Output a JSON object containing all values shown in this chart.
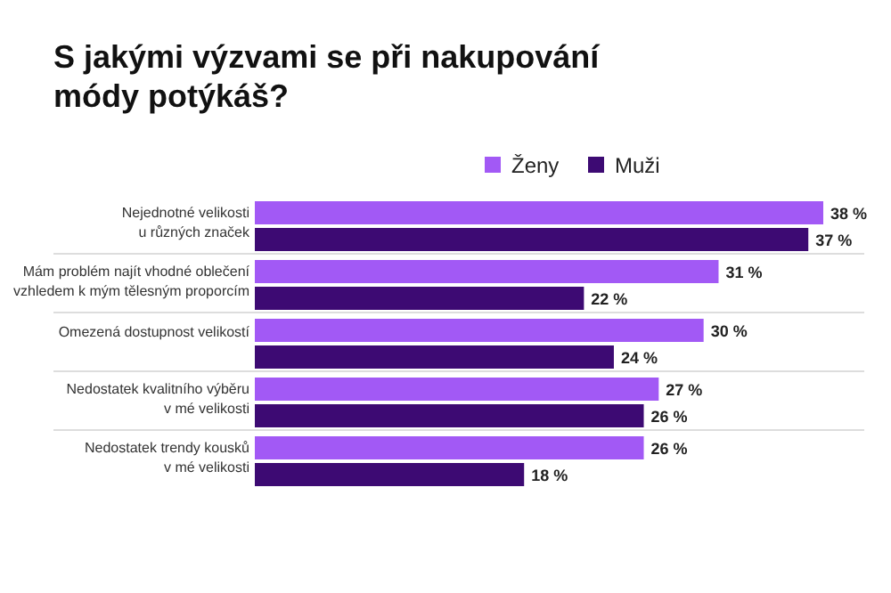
{
  "chart_data": {
    "type": "bar",
    "orientation": "horizontal",
    "title": "S jakými výzvami se při nakupování\nmódy potýkáš?",
    "categories": [
      "Nejednotné velikosti\nu různých značek",
      "Mám problém najít vhodné oblečení\nvzhledem k mým tělesným proporcím",
      "Omezená dostupnost velikostí",
      "Nedostatek kvalitního výběru\nv mé velikosti",
      "Nedostatek trendy kousků\nv mé velikosti"
    ],
    "series": [
      {
        "name": "Ženy",
        "color": "#a259f5",
        "values": [
          38,
          31,
          30,
          27,
          26
        ],
        "value_labels": [
          "38 %",
          "31 %",
          "30 %",
          "27 %",
          "26 %"
        ]
      },
      {
        "name": "Muži",
        "color": "#3d0a73",
        "values": [
          37,
          22,
          24,
          26,
          18
        ],
        "value_labels": [
          "37 %",
          "22 %",
          "24 %",
          "26 %",
          "18 %"
        ]
      }
    ],
    "legend": "top"
  }
}
